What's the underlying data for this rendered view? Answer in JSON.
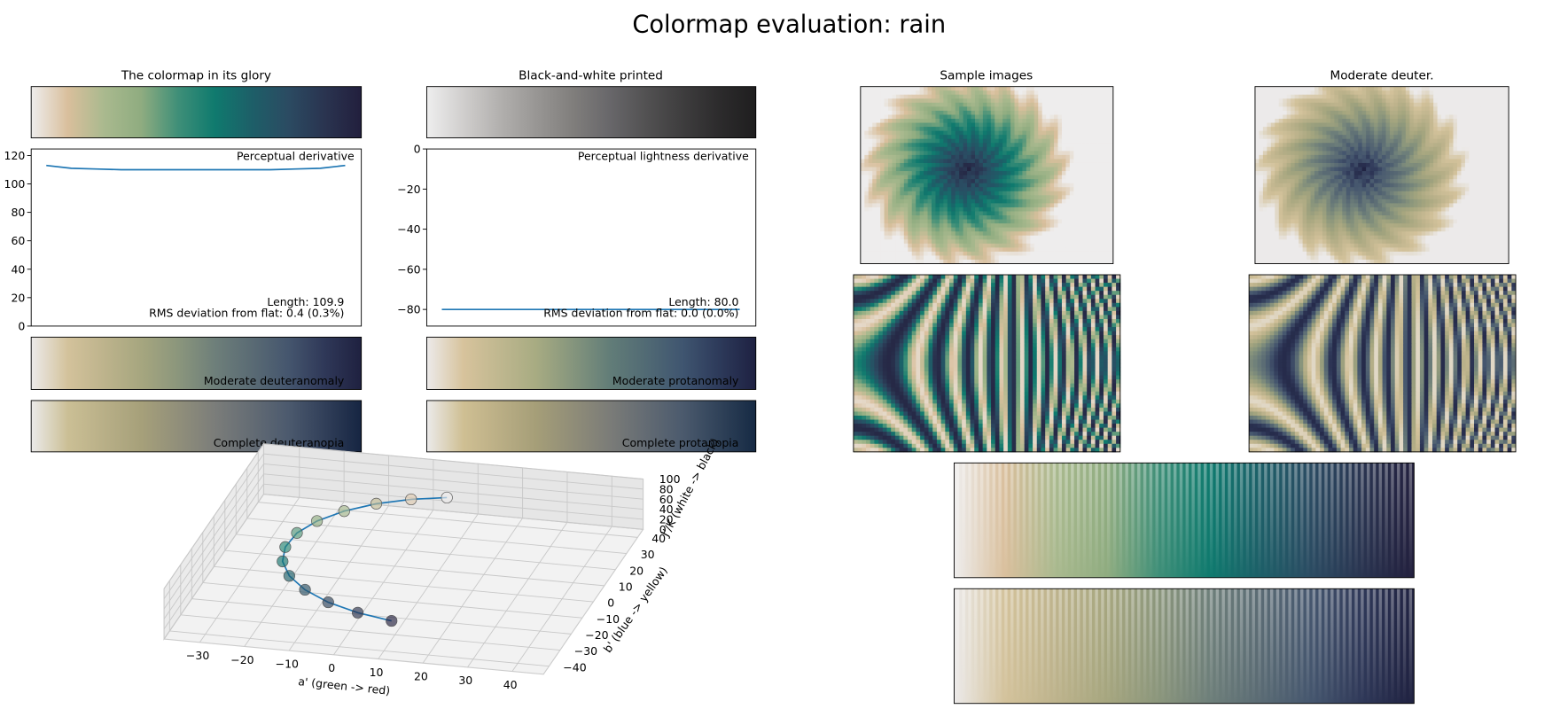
{
  "title": "Colormap evaluation: rain",
  "panels": {
    "glory": "The colormap in its glory",
    "bw": "Black-and-white printed",
    "samples": "Sample images",
    "deuter": "Moderate deuter.",
    "deuteranomaly": "Moderate deuteranomaly",
    "protanomaly": "Moderate protanomaly",
    "deuteranopia": "Complete deuteranopia",
    "protanopia": "Complete protanopia"
  },
  "colormaps": {
    "rain": [
      "#eeeded",
      "#d9bf9c",
      "#a9b98e",
      "#8fac80",
      "#3f8f78",
      "#0f7a6e",
      "#1d5f68",
      "#2b4b62",
      "#2a3450",
      "#221f3d"
    ],
    "bw": [
      "#eeeeee",
      "#d0cecd",
      "#b2b0ae",
      "#989694",
      "#807e7c",
      "#68676a",
      "#525152",
      "#3e3d3e",
      "#2c2b2c",
      "#1f1e1f"
    ],
    "deuteranomaly": [
      "#eceaea",
      "#d3c29b",
      "#bdb38c",
      "#a6a67f",
      "#8b967c",
      "#6e7f7a",
      "#5a6b74",
      "#45566e",
      "#2f3858",
      "#1f2140"
    ],
    "protanomaly": [
      "#eceaea",
      "#d7c39c",
      "#bfb78f",
      "#a7ab82",
      "#85957d",
      "#627d78",
      "#516a74",
      "#3f5570",
      "#2d3a5a",
      "#1e2142"
    ],
    "deuteranopia": [
      "#ebeaea",
      "#cbbf95",
      "#b8af87",
      "#a6a07a",
      "#918f7a",
      "#7b7d7a",
      "#646c74",
      "#4c5a6e",
      "#313f59",
      "#162542"
    ],
    "protanopia": [
      "#ebeaea",
      "#cfbf93",
      "#baae85",
      "#a59e78",
      "#908d78",
      "#7b7c78",
      "#636b73",
      "#4b5a6d",
      "#304259",
      "#162a44"
    ]
  },
  "chart_data": [
    {
      "type": "line",
      "annotation": "Perceptual derivative",
      "notes": [
        "Length: 109.9",
        "RMS deviation from flat: 0.4 (0.3%)"
      ],
      "series": [
        {
          "color": "#1f77b4",
          "values": [
            113,
            111,
            110.5,
            110,
            110,
            110,
            110,
            110,
            110,
            110,
            110.5,
            111,
            113
          ]
        }
      ],
      "ylim": [
        0,
        124.6
      ],
      "yticks": [
        0,
        20,
        40,
        60,
        80,
        100,
        120
      ]
    },
    {
      "type": "line",
      "annotation": "Perceptual lightness derivative",
      "notes": [
        "Length: 80.0",
        "RMS deviation from flat: 0.0 (0.0%)"
      ],
      "series": [
        {
          "color": "#1f77b4",
          "values": [
            -80,
            -80,
            -80,
            -80,
            -80,
            -80,
            -80,
            -80,
            -80,
            -80,
            -80,
            -80,
            -80
          ]
        }
      ],
      "ylim": [
        -88.3,
        0
      ],
      "yticks": [
        {
          "value": -80,
          "label": "−80"
        },
        {
          "value": -60,
          "label": "−60"
        },
        {
          "value": -40,
          "label": "−40"
        },
        {
          "value": -20,
          "label": "−20"
        },
        0
      ]
    },
    {
      "type": "scatter3d",
      "xlabel": "a' (green -> red)",
      "ylabel": "b' (blue -> yellow)",
      "zlabel": "J'/K (white -> black)",
      "colormap": "rain",
      "line_color": "#1f77b4",
      "x": [
        8,
        0.2,
        -7,
        -13.2,
        -18,
        -21,
        -22,
        -21,
        -18,
        -13.2,
        -7,
        0.2,
        8
      ],
      "y": [
        25,
        24.1,
        21.7,
        17.7,
        12.5,
        6.5,
        0,
        -6.5,
        -12.5,
        -17.7,
        -21.7,
        -24.1,
        -25
      ],
      "z": [
        95,
        88,
        81,
        74,
        67,
        60,
        52,
        45,
        38,
        31,
        24,
        17,
        10
      ],
      "xlim": [
        -38,
        47
      ],
      "ylim": [
        -45,
        45
      ],
      "zlim": [
        0,
        100
      ],
      "xticks": [
        {
          "value": -30,
          "label": "−30"
        },
        {
          "value": -20,
          "label": "−20"
        },
        {
          "value": -10,
          "label": "−10"
        },
        0,
        10,
        20,
        30,
        40
      ],
      "yticks": [
        {
          "value": -40,
          "label": "−40"
        },
        {
          "value": -30,
          "label": "−30"
        },
        {
          "value": -20,
          "label": "−20"
        },
        {
          "value": -10,
          "label": "−10"
        },
        0,
        10,
        20,
        30,
        40
      ],
      "zticks": [
        0,
        20,
        40,
        60,
        80,
        100
      ]
    }
  ]
}
